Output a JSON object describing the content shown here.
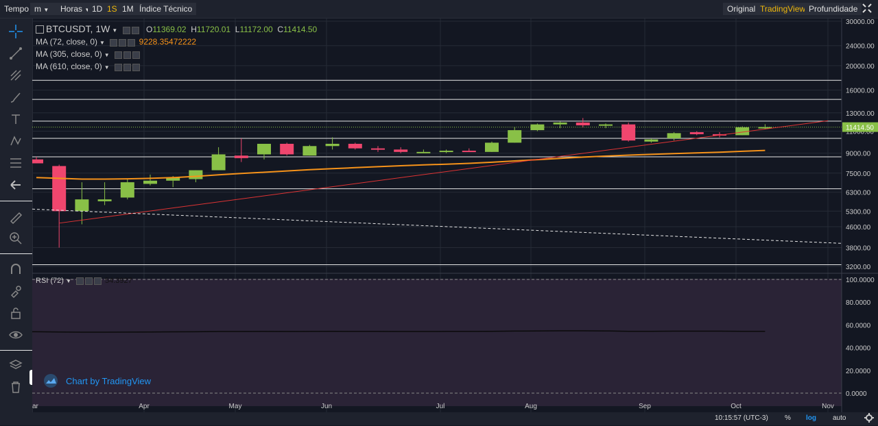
{
  "toolbar": {
    "tempo_label": "Tempo",
    "minutes_label": "m",
    "hours_label": "Horas",
    "d1_label": "1D",
    "w1_label": "1S",
    "m1_label": "1M",
    "indicators_label": "Índice Técnico",
    "original_label": "Original",
    "tradingview_label": "TradingView",
    "depth_label": "Profundidade"
  },
  "legend": {
    "symbol": "BTCUSDT, 1W",
    "o_label": "O",
    "o_value": "11369.02",
    "h_label": "H",
    "h_value": "11720.01",
    "l_label": "L",
    "l_value": "11172.00",
    "c_label": "C",
    "c_value": "11414.50",
    "ma72_label": "MA (72, close, 0)",
    "ma72_value": "9228.35472222",
    "ma305_label": "MA (305, close, 0)",
    "ma610_label": "MA (610, close, 0)",
    "rsi_label": "RSI (72)",
    "rsi_value": "54.3927"
  },
  "watermark": "Chart by TradingView",
  "bottom": {
    "time": "10:15:57 (UTC-3)",
    "percent": "%",
    "log": "log",
    "auto": "auto"
  },
  "colors": {
    "up": "#89c047",
    "down": "#f0466e",
    "ma": "#f7931a",
    "trend": "#e03434",
    "accent": "#f0b90b"
  },
  "chart_data": {
    "type": "candlestick",
    "scale": "log",
    "x_ticks": [
      "ar",
      "Apr",
      "May",
      "Jun",
      "Jul",
      "Aug",
      "Sep",
      "Oct",
      "Nov"
    ],
    "y_ticks": [
      30000,
      24000,
      20000,
      16000,
      13000,
      11000,
      9000,
      7500,
      6300,
      5300,
      4600,
      3800,
      3200
    ],
    "y_tick_labels": [
      "30000.00",
      "24000.00",
      "20000.00",
      "16000.00",
      "13000.00",
      "11000.00",
      "9000.00",
      "7500.00",
      "6300.00",
      "5300.00",
      "4600.00",
      "3800.00",
      "3200.00"
    ],
    "last_price_label": "11414.50",
    "last_price": 11414.5,
    "horizontal_levels": [
      17500,
      14700,
      12050,
      10300,
      8700,
      6500,
      3250
    ],
    "candles": [
      {
        "o": 8500,
        "h": 8700,
        "l": 8200,
        "c": 8200
      },
      {
        "o": 8000,
        "h": 8100,
        "l": 3800,
        "c": 5300
      },
      {
        "o": 5300,
        "h": 6900,
        "l": 4700,
        "c": 5900
      },
      {
        "o": 5800,
        "h": 6900,
        "l": 5600,
        "c": 5900
      },
      {
        "o": 6000,
        "h": 7100,
        "l": 5900,
        "c": 6900
      },
      {
        "o": 6800,
        "h": 7400,
        "l": 6700,
        "c": 7000
      },
      {
        "o": 7000,
        "h": 7300,
        "l": 6600,
        "c": 7200
      },
      {
        "o": 7100,
        "h": 7700,
        "l": 6900,
        "c": 7700
      },
      {
        "o": 7700,
        "h": 9500,
        "l": 7700,
        "c": 8900
      },
      {
        "o": 8800,
        "h": 10300,
        "l": 8300,
        "c": 8600
      },
      {
        "o": 8900,
        "h": 9800,
        "l": 8500,
        "c": 9800
      },
      {
        "o": 9800,
        "h": 9900,
        "l": 8800,
        "c": 8900
      },
      {
        "o": 8800,
        "h": 9700,
        "l": 8800,
        "c": 9600
      },
      {
        "o": 9600,
        "h": 10400,
        "l": 9300,
        "c": 9800
      },
      {
        "o": 9800,
        "h": 9900,
        "l": 9300,
        "c": 9400
      },
      {
        "o": 9400,
        "h": 9600,
        "l": 9100,
        "c": 9300
      },
      {
        "o": 9300,
        "h": 9500,
        "l": 9000,
        "c": 9100
      },
      {
        "o": 9100,
        "h": 9300,
        "l": 9000,
        "c": 9100
      },
      {
        "o": 9100,
        "h": 9300,
        "l": 9000,
        "c": 9200
      },
      {
        "o": 9200,
        "h": 9400,
        "l": 9100,
        "c": 9100
      },
      {
        "o": 9100,
        "h": 10000,
        "l": 9100,
        "c": 9900
      },
      {
        "o": 9900,
        "h": 11400,
        "l": 9900,
        "c": 11100
      },
      {
        "o": 11100,
        "h": 11800,
        "l": 11000,
        "c": 11700
      },
      {
        "o": 11700,
        "h": 12000,
        "l": 11300,
        "c": 11900
      },
      {
        "o": 11900,
        "h": 12400,
        "l": 11400,
        "c": 11600
      },
      {
        "o": 11600,
        "h": 11800,
        "l": 11300,
        "c": 11700
      },
      {
        "o": 11700,
        "h": 11900,
        "l": 10000,
        "c": 10100
      },
      {
        "o": 10000,
        "h": 10300,
        "l": 9900,
        "c": 10200
      },
      {
        "o": 10300,
        "h": 10900,
        "l": 10100,
        "c": 10800
      },
      {
        "o": 10900,
        "h": 11000,
        "l": 10600,
        "c": 10700
      },
      {
        "o": 10700,
        "h": 10900,
        "l": 10400,
        "c": 10600
      },
      {
        "o": 10600,
        "h": 11500,
        "l": 10600,
        "c": 11400
      },
      {
        "o": 11369,
        "h": 11720,
        "l": 11172,
        "c": 11414.5
      }
    ],
    "ma72": [
      7200,
      7150,
      7100,
      7100,
      7120,
      7150,
      7200,
      7280,
      7380,
      7480,
      7560,
      7650,
      7740,
      7810,
      7880,
      7950,
      8020,
      8080,
      8140,
      8200,
      8280,
      8380,
      8480,
      8580,
      8680,
      8760,
      8840,
      8900,
      8960,
      9020,
      9080,
      9150,
      9228
    ],
    "rsi": [
      54.0,
      53.8,
      53.6,
      53.6,
      53.7,
      53.8,
      53.9,
      54.0,
      54.2,
      54.2,
      54.3,
      54.2,
      54.3,
      54.4,
      54.3,
      54.3,
      54.2,
      54.2,
      54.3,
      54.3,
      54.4,
      54.6,
      54.7,
      54.8,
      54.8,
      54.7,
      54.4,
      54.4,
      54.5,
      54.5,
      54.5,
      54.4,
      54.39
    ],
    "rsi_ticks": [
      100,
      80,
      60,
      40,
      20,
      0
    ],
    "rsi_tick_labels": [
      "100.0000",
      "80.0000",
      "60.0000",
      "40.0000",
      "20.0000",
      "0.0000"
    ]
  }
}
